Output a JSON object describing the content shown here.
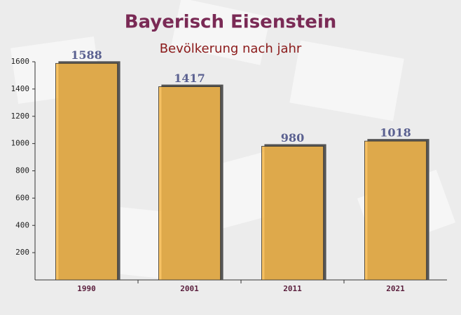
{
  "chart_data": {
    "type": "bar",
    "title": "Bayerisch Eisenstein",
    "subtitle": "Bevölkerung nach jahr",
    "categories": [
      "1990",
      "2001",
      "2011",
      "2021"
    ],
    "values": [
      1588,
      1417,
      980,
      1018
    ],
    "color": "#f7b84a",
    "ylim": [
      0,
      1600
    ],
    "yticks": [
      200,
      400,
      600,
      800,
      1000,
      1200,
      1400,
      1600
    ]
  }
}
